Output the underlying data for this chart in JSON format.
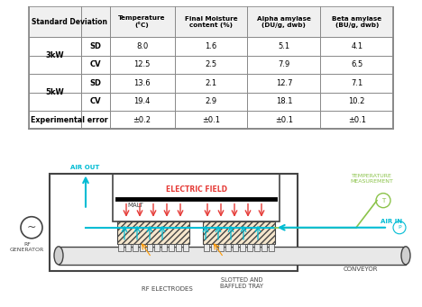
{
  "table": {
    "col_headers": [
      "Standard Deviation",
      "",
      "Temperature\n(°C)",
      "Final Moisture\ncontent (%)",
      "Alpha amylase\n(DU/g, dwb)",
      "Beta amylase\n(BU/g, dwb)"
    ],
    "rows": [
      [
        "3kW",
        "SD",
        "8.0",
        "1.6",
        "5.1",
        "4.1"
      ],
      [
        "3kW",
        "CV",
        "12.5",
        "2.5",
        "7.9",
        "6.5"
      ],
      [
        "5kW",
        "SD",
        "13.6",
        "2.1",
        "12.7",
        "7.1"
      ],
      [
        "5kW",
        "CV",
        "19.4",
        "2.9",
        "18.1",
        "10.2"
      ],
      [
        "Experimental error",
        "",
        "±0.2",
        "±0.1",
        "±0.1",
        "±0.1"
      ]
    ]
  },
  "colors": {
    "cyan": "#00bcd4",
    "red": "#e53935",
    "orange": "#ff9800",
    "green": "#8bc34a",
    "darkgray": "#444444",
    "lightgray": "#e8e8e8",
    "tray_fill": "#f5e6cc",
    "conveyor_fill": "#e8e8e8",
    "conveyor_edge": "#d0d0d0"
  }
}
